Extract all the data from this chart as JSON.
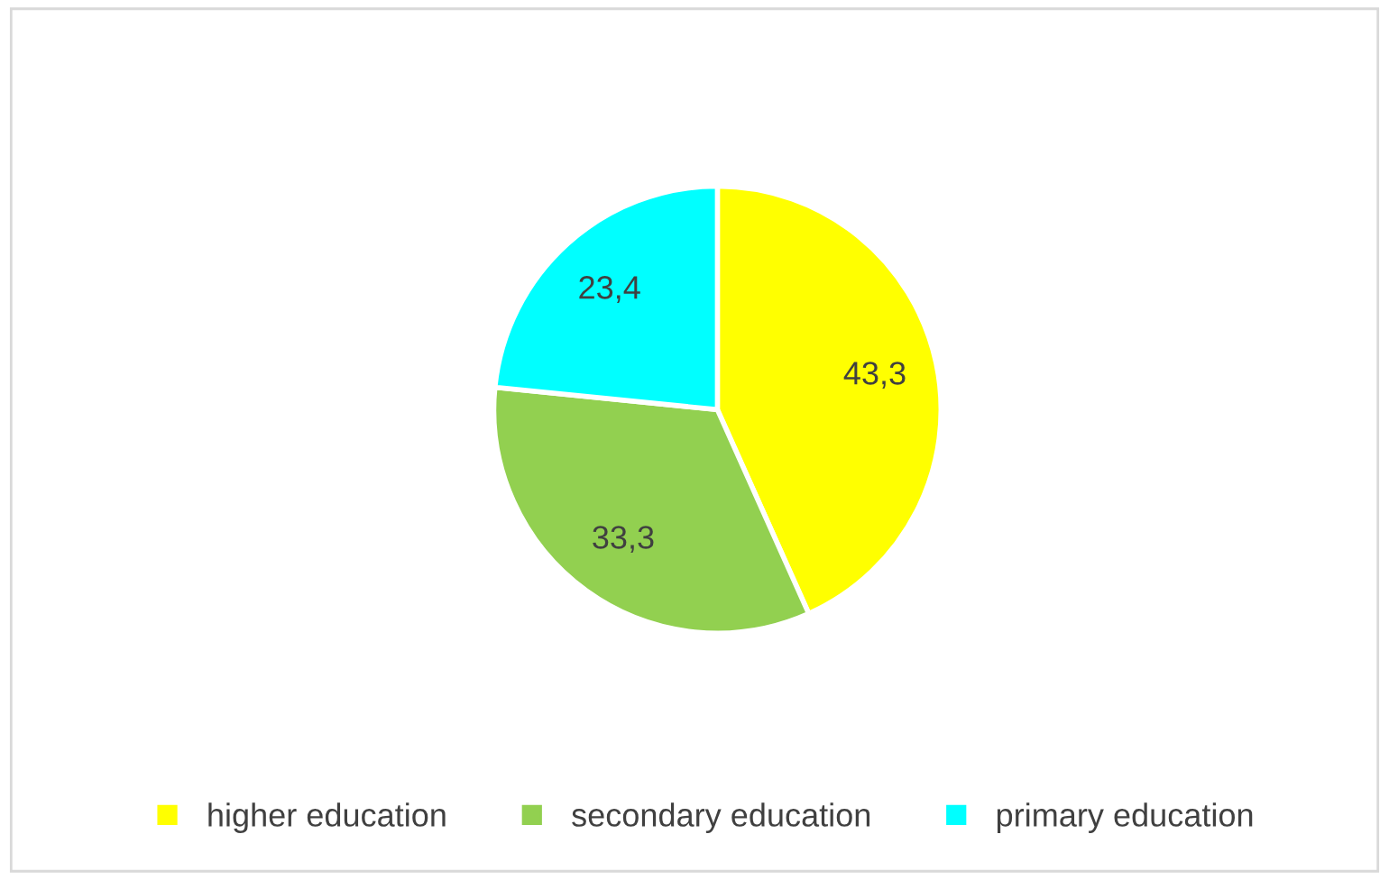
{
  "chart_data": {
    "type": "pie",
    "categories": [
      "higher education",
      "secondary education",
      "primary education"
    ],
    "values": [
      43.3,
      33.3,
      23.4
    ],
    "value_labels": [
      "43,3",
      "33,3",
      "23,4"
    ],
    "colors": [
      "#ffff00",
      "#92d050",
      "#00ffff"
    ],
    "legend": "bottom"
  }
}
